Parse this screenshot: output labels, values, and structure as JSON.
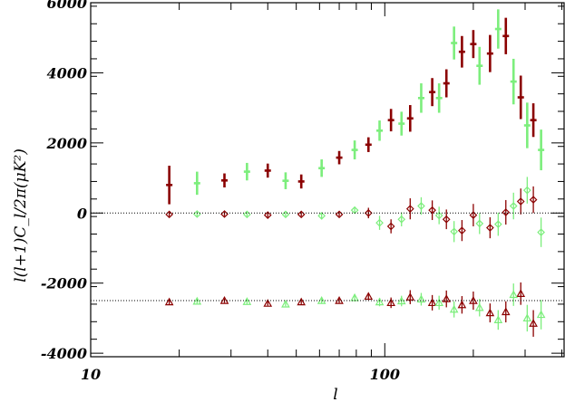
{
  "chart_data": {
    "type": "scatter",
    "title": "",
    "xlabel": "l",
    "ylabel": "l(l+1)C_l/2π(μK²)",
    "x_scale": "log",
    "xlim": [
      10,
      410
    ],
    "ylim": [
      -4100,
      6000
    ],
    "x_ticks": [
      {
        "value": 10,
        "label": "10"
      },
      {
        "value": 100,
        "label": "100"
      }
    ],
    "y_ticks": [
      {
        "value": -4000,
        "label": "-4000"
      },
      {
        "value": -2000,
        "label": "-2000"
      },
      {
        "value": 0,
        "label": "0"
      },
      {
        "value": 2000,
        "label": "2000"
      },
      {
        "value": 4000,
        "label": "4000"
      },
      {
        "value": 6000,
        "label": "6000"
      }
    ],
    "reference_lines_y": [
      0,
      -2500
    ],
    "grid": false,
    "legend": "none",
    "colors": {
      "dark_red": "#8b0000",
      "light_green": "#7cee7c"
    },
    "series": [
      {
        "marker": "plus",
        "color": "#8b0000",
        "points": [
          {
            "x": 18.5,
            "y": 800,
            "err": 550
          },
          {
            "x": 28.5,
            "y": 930,
            "err": 200
          },
          {
            "x": 40,
            "y": 1210,
            "err": 200
          },
          {
            "x": 52,
            "y": 900,
            "err": 200
          },
          {
            "x": 70,
            "y": 1580,
            "err": 190
          },
          {
            "x": 88,
            "y": 1950,
            "err": 210
          },
          {
            "x": 105,
            "y": 2650,
            "err": 320
          },
          {
            "x": 122,
            "y": 2700,
            "err": 380
          },
          {
            "x": 145,
            "y": 3450,
            "err": 400
          },
          {
            "x": 162,
            "y": 3700,
            "err": 400
          },
          {
            "x": 183,
            "y": 4600,
            "err": 450
          },
          {
            "x": 200,
            "y": 4820,
            "err": 400
          },
          {
            "x": 228,
            "y": 4550,
            "err": 530
          },
          {
            "x": 258,
            "y": 5050,
            "err": 520
          },
          {
            "x": 290,
            "y": 3300,
            "err": 620
          },
          {
            "x": 320,
            "y": 2650,
            "err": 480
          }
        ]
      },
      {
        "marker": "plus",
        "color": "#7cee7c",
        "points": [
          {
            "x": 23,
            "y": 850,
            "err": 330
          },
          {
            "x": 34,
            "y": 1180,
            "err": 250
          },
          {
            "x": 46,
            "y": 920,
            "err": 240
          },
          {
            "x": 61,
            "y": 1280,
            "err": 250
          },
          {
            "x": 79,
            "y": 1800,
            "err": 270
          },
          {
            "x": 96,
            "y": 2350,
            "err": 290
          },
          {
            "x": 114,
            "y": 2550,
            "err": 340
          },
          {
            "x": 133,
            "y": 3280,
            "err": 420
          },
          {
            "x": 153,
            "y": 3280,
            "err": 420
          },
          {
            "x": 172,
            "y": 4850,
            "err": 470
          },
          {
            "x": 210,
            "y": 4200,
            "err": 540
          },
          {
            "x": 243,
            "y": 5250,
            "err": 560
          },
          {
            "x": 274,
            "y": 3750,
            "err": 650
          },
          {
            "x": 305,
            "y": 2500,
            "err": 650
          },
          {
            "x": 340,
            "y": 1800,
            "err": 580
          }
        ]
      },
      {
        "marker": "diamond",
        "color": "#8b0000",
        "points": [
          {
            "x": 18.5,
            "y": -40,
            "err": 60
          },
          {
            "x": 28.5,
            "y": -30,
            "err": 60
          },
          {
            "x": 40,
            "y": -60,
            "err": 60
          },
          {
            "x": 52,
            "y": -40,
            "err": 60
          },
          {
            "x": 70,
            "y": -40,
            "err": 60
          },
          {
            "x": 88,
            "y": 0,
            "err": 150
          },
          {
            "x": 105,
            "y": -380,
            "err": 200
          },
          {
            "x": 122,
            "y": 120,
            "err": 300
          },
          {
            "x": 145,
            "y": 80,
            "err": 280
          },
          {
            "x": 162,
            "y": -180,
            "err": 280
          },
          {
            "x": 183,
            "y": -500,
            "err": 300
          },
          {
            "x": 200,
            "y": -60,
            "err": 320
          },
          {
            "x": 228,
            "y": -420,
            "err": 300
          },
          {
            "x": 258,
            "y": 20,
            "err": 350
          },
          {
            "x": 290,
            "y": 330,
            "err": 370
          },
          {
            "x": 320,
            "y": 380,
            "err": 380
          }
        ]
      },
      {
        "marker": "diamond",
        "color": "#7cee7c",
        "points": [
          {
            "x": 23,
            "y": -30,
            "err": 60
          },
          {
            "x": 34,
            "y": -40,
            "err": 60
          },
          {
            "x": 46,
            "y": -40,
            "err": 60
          },
          {
            "x": 61,
            "y": -80,
            "err": 100
          },
          {
            "x": 79,
            "y": 80,
            "err": 100
          },
          {
            "x": 96,
            "y": -280,
            "err": 200
          },
          {
            "x": 114,
            "y": -180,
            "err": 200
          },
          {
            "x": 133,
            "y": 200,
            "err": 250
          },
          {
            "x": 153,
            "y": -70,
            "err": 250
          },
          {
            "x": 172,
            "y": -530,
            "err": 300
          },
          {
            "x": 210,
            "y": -300,
            "err": 300
          },
          {
            "x": 243,
            "y": -320,
            "err": 330
          },
          {
            "x": 274,
            "y": 200,
            "err": 380
          },
          {
            "x": 305,
            "y": 650,
            "err": 380
          },
          {
            "x": 340,
            "y": -550,
            "err": 420
          }
        ]
      },
      {
        "marker": "triangle",
        "color": "#8b0000",
        "points": [
          {
            "x": 18.5,
            "y": -2540,
            "err": 60
          },
          {
            "x": 28.5,
            "y": -2500,
            "err": 60
          },
          {
            "x": 40,
            "y": -2580,
            "err": 60
          },
          {
            "x": 52,
            "y": -2540,
            "err": 60
          },
          {
            "x": 70,
            "y": -2500,
            "err": 60
          },
          {
            "x": 88,
            "y": -2380,
            "err": 100
          },
          {
            "x": 105,
            "y": -2560,
            "err": 150
          },
          {
            "x": 122,
            "y": -2400,
            "err": 200
          },
          {
            "x": 145,
            "y": -2560,
            "err": 220
          },
          {
            "x": 162,
            "y": -2450,
            "err": 240
          },
          {
            "x": 183,
            "y": -2620,
            "err": 250
          },
          {
            "x": 200,
            "y": -2500,
            "err": 260
          },
          {
            "x": 228,
            "y": -2850,
            "err": 270
          },
          {
            "x": 258,
            "y": -2820,
            "err": 300
          },
          {
            "x": 290,
            "y": -2300,
            "err": 320
          },
          {
            "x": 320,
            "y": -3150,
            "err": 380
          }
        ]
      },
      {
        "marker": "triangle",
        "color": "#7cee7c",
        "points": [
          {
            "x": 23,
            "y": -2520,
            "err": 60
          },
          {
            "x": 34,
            "y": -2530,
            "err": 60
          },
          {
            "x": 46,
            "y": -2600,
            "err": 60
          },
          {
            "x": 61,
            "y": -2500,
            "err": 80
          },
          {
            "x": 79,
            "y": -2420,
            "err": 100
          },
          {
            "x": 96,
            "y": -2540,
            "err": 120
          },
          {
            "x": 114,
            "y": -2510,
            "err": 150
          },
          {
            "x": 133,
            "y": -2460,
            "err": 180
          },
          {
            "x": 153,
            "y": -2560,
            "err": 200
          },
          {
            "x": 172,
            "y": -2750,
            "err": 230
          },
          {
            "x": 210,
            "y": -2700,
            "err": 250
          },
          {
            "x": 243,
            "y": -3050,
            "err": 280
          },
          {
            "x": 274,
            "y": -2330,
            "err": 320
          },
          {
            "x": 305,
            "y": -3000,
            "err": 380
          },
          {
            "x": 340,
            "y": -2900,
            "err": 420
          }
        ]
      }
    ]
  }
}
